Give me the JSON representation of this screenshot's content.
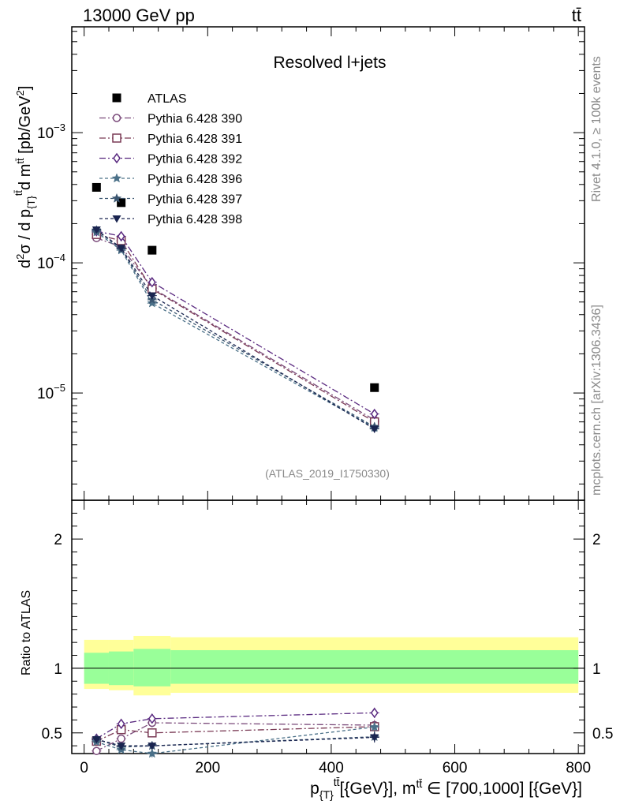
{
  "header": {
    "left": "13000 GeV pp",
    "right": "tt̄"
  },
  "side_labels": {
    "rivet": "Rivet 4.1.0, ≥ 100k events",
    "mcplots": "mcplots.cern.ch [arXiv:1306.3436]"
  },
  "colors": {
    "atlas": "#000000",
    "band_inner": "#99ff99",
    "band_outer": "#ffff99",
    "s390": "#7a4a7a",
    "s391": "#7a3a55",
    "s392": "#5a2a80",
    "s396": "#4a7088",
    "s397": "#3a5570",
    "s398": "#1a2550"
  },
  "chart_data": {
    "type": "scatter",
    "title": "Resolved l+jets",
    "analysis_tag": "(ATLAS_2019_I1750330)",
    "xlabel": "p_{T}^{tt̄} [{GeV}], m^{tt̄} ∈ [700,1000] [{GeV}]",
    "ylabel": "d²σ / d p_{T}^{tt̄} d m^{tt̄} [pb/GeV²]",
    "ratio_ylabel": "Ratio to ATLAS",
    "xlim": [
      -20,
      810
    ],
    "ylim": [
      1.5e-06,
      0.0065
    ],
    "yscale": "log",
    "ratio_ylim": [
      0.34,
      2.3
    ],
    "x_ticks": [
      0,
      200,
      400,
      600,
      800
    ],
    "x_tick_labels": [
      "0",
      "200",
      "400",
      "600",
      "800"
    ],
    "y_ticks": [
      0.001,
      0.0001,
      1e-05
    ],
    "y_tick_labels": [
      {
        "base": "10",
        "exp": "−3"
      },
      {
        "base": "10",
        "exp": "−4"
      },
      {
        "base": "10",
        "exp": "−5"
      }
    ],
    "ratio_ticks": [
      0.5,
      1,
      2
    ],
    "ratio_tick_labels": [
      "0.5",
      "1",
      "2"
    ],
    "data": {
      "name": "ATLAS",
      "x": [
        20,
        60,
        110,
        470
      ],
      "y": [
        0.00038,
        0.00029,
        0.000125,
        1.1e-05
      ],
      "bins": [
        [
          0,
          40
        ],
        [
          40,
          80
        ],
        [
          80,
          140
        ],
        [
          140,
          800
        ]
      ],
      "band_inner": [
        [
          0.88,
          1.12
        ],
        [
          0.87,
          1.13
        ],
        [
          0.86,
          1.15
        ],
        [
          0.88,
          1.14
        ]
      ],
      "band_outer": [
        [
          0.84,
          1.22
        ],
        [
          0.83,
          1.22
        ],
        [
          0.79,
          1.25
        ],
        [
          0.81,
          1.24
        ]
      ]
    },
    "series": [
      {
        "name": "Pythia 6.428 390",
        "marker": "circle-open",
        "dash": "8,3,2,3",
        "x": [
          20,
          60,
          110,
          470
        ],
        "y": [
          0.000155,
          0.000133,
          6.4e-05,
          6.2e-06
        ],
        "ratio": [
          0.36,
          0.455,
          0.578,
          0.56
        ],
        "ratio_err": [
          0.015,
          0.02,
          0.035,
          0.04
        ]
      },
      {
        "name": "Pythia 6.428 391",
        "marker": "square-open",
        "dash": "8,3,2,3",
        "x": [
          20,
          60,
          110,
          470
        ],
        "y": [
          0.000165,
          0.000148,
          6.3e-05,
          6e-06
        ],
        "ratio": [
          0.435,
          0.525,
          0.5,
          0.548
        ],
        "ratio_err": [
          0.02,
          0.025,
          0.03,
          0.04
        ]
      },
      {
        "name": "Pythia 6.428 392",
        "marker": "diamond-open",
        "dash": "8,3,2,3",
        "x": [
          20,
          60,
          110,
          470
        ],
        "y": [
          0.000175,
          0.00016,
          7.1e-05,
          6.9e-06
        ],
        "ratio": [
          0.455,
          0.57,
          0.61,
          0.655
        ],
        "ratio_err": [
          0.02,
          0.025,
          0.035,
          0.04
        ]
      },
      {
        "name": "Pythia 6.428 396",
        "marker": "star",
        "dash": "4,3",
        "x": [
          20,
          60,
          110,
          470
        ],
        "y": [
          0.000172,
          0.000125,
          4.9e-05,
          5.4e-06
        ],
        "ratio": [
          0.43,
          0.37,
          0.34,
          0.545
        ],
        "ratio_err": [
          0.02,
          0.02,
          0.03,
          0.04
        ]
      },
      {
        "name": "Pythia 6.428 397",
        "marker": "star",
        "dash": "4,3",
        "x": [
          20,
          60,
          110,
          470
        ],
        "y": [
          0.000178,
          0.000128,
          5.2e-05,
          5.5e-06
        ],
        "ratio": [
          0.45,
          0.39,
          0.4,
          0.47
        ],
        "ratio_err": [
          0.02,
          0.02,
          0.03,
          0.04
        ]
      },
      {
        "name": "Pythia 6.428 398",
        "marker": "triangle-down",
        "dash": "4,3",
        "x": [
          20,
          60,
          110,
          470
        ],
        "y": [
          0.00018,
          0.00013,
          5.6e-05,
          5.3e-06
        ],
        "ratio": [
          0.45,
          0.4,
          0.4,
          0.465
        ],
        "ratio_err": [
          0.02,
          0.02,
          0.03,
          0.04
        ]
      }
    ]
  }
}
